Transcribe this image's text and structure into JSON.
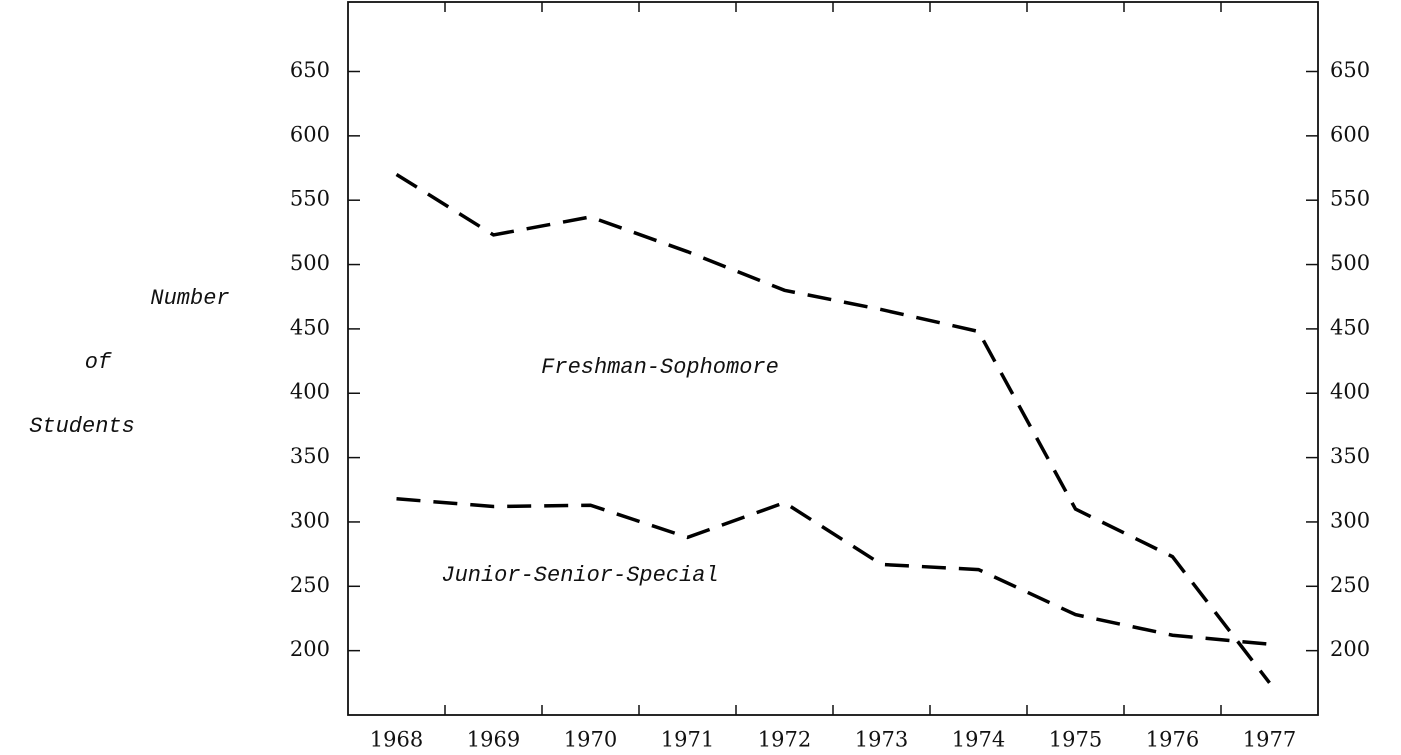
{
  "chart_data": {
    "type": "line",
    "ylabel": [
      "Number",
      "of",
      "Students"
    ],
    "categories": [
      "1968",
      "1969",
      "1970",
      "1971",
      "1972",
      "1973",
      "1974",
      "1975",
      "1976",
      "1977"
    ],
    "series": [
      {
        "name": "Freshman-Sophomore",
        "color": "#000000",
        "values": [
          570,
          523,
          537,
          510,
          480,
          465,
          448,
          310,
          273,
          175
        ]
      },
      {
        "name": "Junior-Senior-Special",
        "color": "#000000",
        "values": [
          318,
          312,
          313,
          288,
          315,
          267,
          263,
          228,
          212,
          205
        ]
      }
    ],
    "ylim": [
      150,
      704
    ],
    "yticks": [
      200,
      250,
      300,
      350,
      400,
      450,
      500,
      550,
      600,
      650
    ],
    "grid": false
  }
}
